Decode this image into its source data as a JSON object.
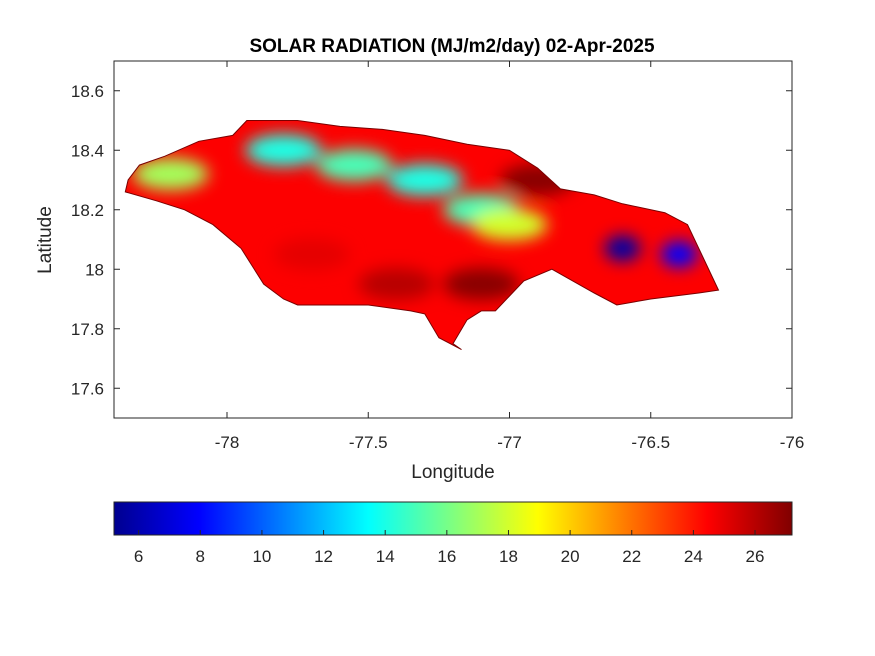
{
  "chart_data": {
    "type": "heatmap",
    "title": "SOLAR RADIATION (MJ/m2/day) 02-Apr-2025",
    "xlabel": "Longitude",
    "ylabel": "Latitude",
    "xlim": [
      -78.4,
      -76
    ],
    "ylim": [
      17.5,
      18.7
    ],
    "xticks": [
      -78,
      -77.5,
      -77,
      -76.5,
      -76
    ],
    "yticks": [
      17.6,
      17.8,
      18,
      18.2,
      18.4,
      18.6
    ],
    "colormap": "jet",
    "colorbar": {
      "position": "bottom",
      "range": [
        5.2,
        27.2
      ],
      "ticks": [
        6,
        8,
        10,
        12,
        14,
        16,
        18,
        20,
        22,
        24,
        26
      ]
    },
    "region_outline": [
      [
        -78.36,
        18.26
      ],
      [
        -78.35,
        18.3
      ],
      [
        -78.31,
        18.35
      ],
      [
        -78.22,
        18.38
      ],
      [
        -78.1,
        18.43
      ],
      [
        -77.98,
        18.45
      ],
      [
        -77.93,
        18.5
      ],
      [
        -77.75,
        18.5
      ],
      [
        -77.6,
        18.48
      ],
      [
        -77.45,
        18.47
      ],
      [
        -77.3,
        18.45
      ],
      [
        -77.15,
        18.42
      ],
      [
        -77.0,
        18.4
      ],
      [
        -76.9,
        18.34
      ],
      [
        -76.82,
        18.27
      ],
      [
        -76.7,
        18.25
      ],
      [
        -76.6,
        18.22
      ],
      [
        -76.45,
        18.19
      ],
      [
        -76.37,
        18.15
      ],
      [
        -76.32,
        18.05
      ],
      [
        -76.26,
        17.93
      ],
      [
        -76.33,
        17.92
      ],
      [
        -76.5,
        17.9
      ],
      [
        -76.62,
        17.88
      ],
      [
        -76.7,
        17.92
      ],
      [
        -76.85,
        18.0
      ],
      [
        -76.95,
        17.96
      ],
      [
        -77.0,
        17.91
      ],
      [
        -77.05,
        17.86
      ],
      [
        -77.1,
        17.86
      ],
      [
        -77.15,
        17.83
      ],
      [
        -77.2,
        17.75
      ],
      [
        -77.17,
        17.73
      ],
      [
        -77.25,
        17.77
      ],
      [
        -77.3,
        17.85
      ],
      [
        -77.35,
        17.86
      ],
      [
        -77.5,
        17.88
      ],
      [
        -77.75,
        17.88
      ],
      [
        -77.8,
        17.9
      ],
      [
        -77.87,
        17.95
      ],
      [
        -77.95,
        18.07
      ],
      [
        -78.05,
        18.15
      ],
      [
        -78.15,
        18.2
      ],
      [
        -78.25,
        18.23
      ]
    ],
    "field_hotspots": [
      {
        "lon": -77.8,
        "lat": 18.4,
        "value": 14
      },
      {
        "lon": -77.55,
        "lat": 18.35,
        "value": 15
      },
      {
        "lon": -77.3,
        "lat": 18.3,
        "value": 14
      },
      {
        "lon": -77.1,
        "lat": 18.2,
        "value": 15
      },
      {
        "lon": -77.0,
        "lat": 18.15,
        "value": 18
      },
      {
        "lon": -78.2,
        "lat": 18.32,
        "value": 17
      },
      {
        "lon": -76.6,
        "lat": 18.07,
        "value": 6
      },
      {
        "lon": -76.4,
        "lat": 18.05,
        "value": 8
      },
      {
        "lon": -77.4,
        "lat": 17.95,
        "value": 26
      },
      {
        "lon": -77.1,
        "lat": 17.95,
        "value": 27
      },
      {
        "lon": -76.9,
        "lat": 18.3,
        "value": 27
      },
      {
        "lon": -77.7,
        "lat": 18.05,
        "value": 25
      }
    ]
  }
}
